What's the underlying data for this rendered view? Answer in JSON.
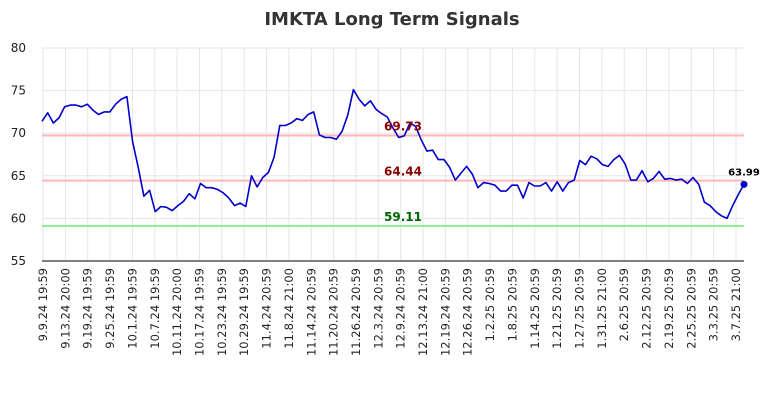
{
  "chart_data": {
    "type": "line",
    "title": "IMKTA Long Term Signals",
    "xlabel": "",
    "ylabel": "",
    "ylim": [
      55,
      80
    ],
    "yticks": [
      55,
      60,
      65,
      70,
      75,
      80
    ],
    "grid": true,
    "xtick_labels": [
      "9.9.24 19:59",
      "9.13.24 20:00",
      "9.19.24 19:59",
      "9.25.24 19:59",
      "10.1.24 19:59",
      "10.7.24 19:59",
      "10.11.24 20:00",
      "10.17.24 19:59",
      "10.23.24 19:59",
      "10.29.24 19:59",
      "11.4.24 20:59",
      "11.8.24 21:00",
      "11.14.24 20:59",
      "11.20.24 20:59",
      "11.26.24 20:59",
      "12.3.24 20:59",
      "12.9.24 20:59",
      "12.13.24 21:00",
      "12.19.24 20:59",
      "12.26.24 20:59",
      "1.2.25 20:59",
      "1.8.25 20:59",
      "1.14.25 20:59",
      "1.21.25 20:59",
      "1.27.25 20:59",
      "1.31.25 21:00",
      "2.6.25 20:59",
      "2.12.25 20:59",
      "2.19.25 20:59",
      "2.25.25 20:59",
      "3.3.25 20:59",
      "3.7.25 21:00"
    ],
    "series": [
      {
        "color": "#0000cc",
        "values": [
          71.4,
          72.4,
          71.2,
          71.8,
          73.1,
          73.3,
          73.3,
          73.1,
          73.4,
          72.7,
          72.2,
          72.5,
          72.5,
          73.4,
          74.0,
          74.3,
          69.0,
          66.0,
          62.6,
          63.3,
          60.8,
          61.4,
          61.3,
          60.9,
          61.5,
          62.0,
          62.9,
          62.3,
          64.1,
          63.6,
          63.6,
          63.4,
          63.0,
          62.4,
          61.5,
          61.8,
          61.4,
          65.0,
          63.7,
          64.8,
          65.4,
          67.2,
          70.9,
          70.9,
          71.2,
          71.7,
          71.5,
          72.2,
          72.5,
          69.8,
          69.5,
          69.5,
          69.3,
          70.2,
          72.1,
          75.1,
          74.0,
          73.2,
          73.8,
          72.8,
          72.3,
          71.9,
          70.6,
          69.5,
          69.7,
          71.2,
          70.8,
          69.2,
          67.9,
          68.0,
          66.9,
          66.9,
          66.0,
          64.5,
          65.3,
          66.1,
          65.2,
          63.6,
          64.2,
          64.1,
          63.9,
          63.2,
          63.2,
          63.9,
          63.9,
          62.4,
          64.2,
          63.8,
          63.8,
          64.2,
          63.2,
          64.3,
          63.2,
          64.2,
          64.5,
          66.8,
          66.3,
          67.3,
          67.0,
          66.3,
          66.1,
          66.9,
          67.4,
          66.4,
          64.5,
          64.5,
          65.6,
          64.3,
          64.7,
          65.5,
          64.6,
          64.7,
          64.5,
          64.6,
          64.1,
          64.8,
          64.0,
          61.9,
          61.5,
          60.8,
          60.3,
          60.0,
          61.5,
          62.8,
          63.99
        ]
      }
    ],
    "levels": [
      {
        "value": 69.73,
        "label": "69.73",
        "line_color": "#ffb6b6",
        "label_color": "#8b0000"
      },
      {
        "value": 64.44,
        "label": "64.44",
        "line_color": "#ffb6b6",
        "label_color": "#8b0000"
      },
      {
        "value": 59.11,
        "label": "59.11",
        "line_color": "#90ee90",
        "label_color": "#006400"
      }
    ],
    "last_value_label": "63.99"
  }
}
